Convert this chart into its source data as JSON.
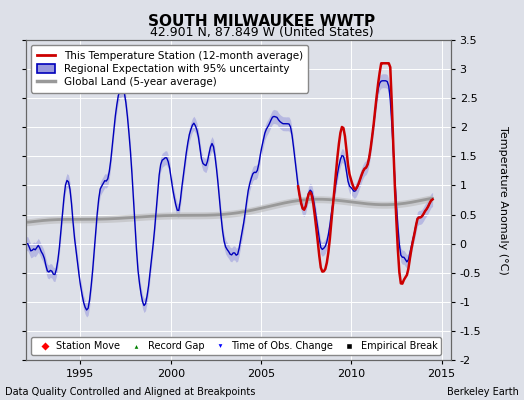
{
  "title": "SOUTH MILWAUKEE WWTP",
  "subtitle": "42.901 N, 87.849 W (United States)",
  "ylabel": "Temperature Anomaly (°C)",
  "xlabel_left": "Data Quality Controlled and Aligned at Breakpoints",
  "xlabel_right": "Berkeley Earth",
  "ylim": [
    -2.0,
    3.5
  ],
  "yticks": [
    -2.0,
    -1.5,
    -1.0,
    -0.5,
    0.0,
    0.5,
    1.0,
    1.5,
    2.0,
    2.5,
    3.0,
    3.5
  ],
  "ytick_labels": [
    "-2",
    "-1.5",
    "-1",
    "-0.5",
    "0",
    "0.5",
    "1",
    "1.5",
    "2",
    "2.5",
    "3",
    "3.5"
  ],
  "xlim": [
    1992.0,
    2015.5
  ],
  "xticks": [
    1995,
    2000,
    2005,
    2010,
    2015
  ],
  "background_color": "#dde0e8",
  "plot_bg_color": "#dde0e8",
  "grid_color": "#ffffff",
  "legend1_items": [
    "This Temperature Station (12-month average)",
    "Regional Expectation with 95% uncertainty",
    "Global Land (5-year average)"
  ],
  "legend2_items": [
    "Station Move",
    "Record Gap",
    "Time of Obs. Change",
    "Empirical Break"
  ],
  "red_line_color": "#cc0000",
  "blue_line_color": "#0000bb",
  "blue_fill_color": "#9999dd",
  "gray_line_color": "#999999",
  "gray_fill_color": "#bbbbbb"
}
